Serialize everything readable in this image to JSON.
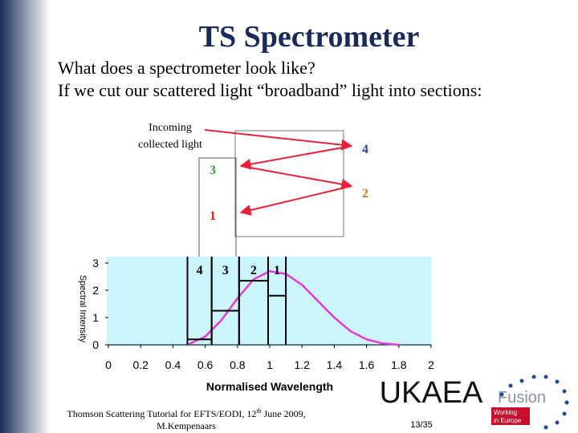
{
  "title": "TS Spectrometer",
  "text": [
    "What does a spectrometer look like?",
    "If we cut our scattered light “broadband” light into sections:"
  ],
  "diagram": {
    "incoming": [
      "Incoming",
      "collected light"
    ],
    "labels": [
      "4",
      "3",
      "2",
      "1"
    ]
  },
  "chart_data": [
    {
      "type": "line",
      "x_label": "Normalised Wavelength",
      "y_label": "Spectral Intensity",
      "xlim": [
        0,
        2
      ],
      "ylim": [
        0,
        3
      ],
      "xticks": [
        0,
        0.2,
        0.4,
        0.6,
        0.8,
        1,
        1.2,
        1.4,
        1.6,
        1.8,
        2
      ],
      "yticks": [
        0,
        1,
        2,
        3
      ],
      "background": "#ccf5fb",
      "series": [
        {
          "color": "#e639d0",
          "x": [
            0.5,
            0.6,
            0.7,
            0.8,
            0.9,
            1.0,
            1.1,
            1.2,
            1.3,
            1.4,
            1.5,
            1.6,
            1.7,
            1.8
          ],
          "values": [
            0.03,
            0.3,
            0.9,
            1.7,
            2.4,
            2.7,
            2.6,
            2.2,
            1.6,
            1.0,
            0.5,
            0.2,
            0.05,
            0
          ]
        }
      ]
    },
    {
      "type": "histogram",
      "color": "#000000",
      "bins": [
        0.49,
        0.64,
        0.81,
        0.99,
        1.1
      ],
      "values": [
        0.2,
        1.25,
        2.35,
        1.8
      ],
      "labels": [
        "4",
        "3",
        "2",
        "1"
      ]
    }
  ],
  "footer": {
    "citation": [
      "Thomson Scattering Tutorial for EFTS/EODI, 12",
      "th",
      " June 2009,",
      "M.Kempenaars"
    ],
    "page": "13/35"
  },
  "logo": {
    "name": "UKAEA",
    "sub": "Fusion",
    "tag": [
      "Working",
      "in Europe"
    ]
  }
}
